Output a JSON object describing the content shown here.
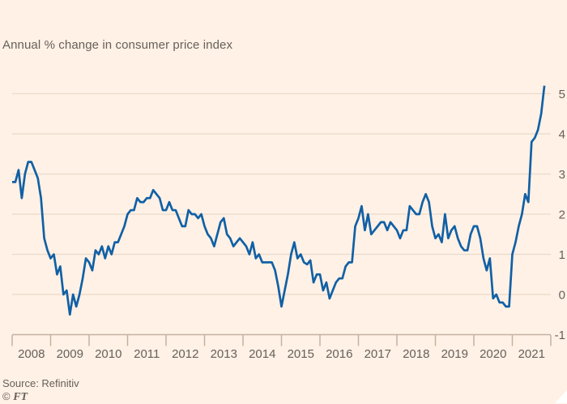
{
  "figure": {
    "subtitle": "Annual % change in consumer price index",
    "source": "Source: Refinitiv",
    "credit": {
      "symbol": "©",
      "name": "FT"
    }
  },
  "colors": {
    "background": "#FFF1E5",
    "line": "#1160A5",
    "gridline": "#E9DACA",
    "axis": "#C3B2A2",
    "text": "#66605C",
    "corner_fold": "#FFFFFF"
  },
  "chart_data": {
    "type": "line",
    "title": "Annual % change in consumer price index",
    "xlabel": "",
    "ylabel": "",
    "grid": "horizontal",
    "legend": "none",
    "x_range": {
      "start": "2008-01",
      "end": "2021-11",
      "frequency": "monthly"
    },
    "xlim_years": [
      2008,
      2022
    ],
    "ylim": [
      -1,
      5.45
    ],
    "y_ticks": [
      5,
      4,
      3,
      2,
      1,
      0,
      -1
    ],
    "x_tick_labels": [
      "2008",
      "2009",
      "2010",
      "2011",
      "2012",
      "2013",
      "2014",
      "2015",
      "2016",
      "2017",
      "2018",
      "2019",
      "2020",
      "2021"
    ],
    "series": [
      {
        "name": "Annual % change in consumer price index",
        "values": [
          2.8,
          2.8,
          3.1,
          2.4,
          3.0,
          3.3,
          3.3,
          3.1,
          2.9,
          2.4,
          1.4,
          1.1,
          0.9,
          1.0,
          0.5,
          0.7,
          0.0,
          0.1,
          -0.5,
          0.0,
          -0.3,
          0.0,
          0.4,
          0.9,
          0.8,
          0.6,
          1.1,
          1.0,
          1.2,
          0.9,
          1.2,
          1.0,
          1.3,
          1.3,
          1.5,
          1.7,
          2.0,
          2.1,
          2.1,
          2.4,
          2.3,
          2.3,
          2.4,
          2.4,
          2.6,
          2.5,
          2.4,
          2.1,
          2.1,
          2.3,
          2.1,
          2.1,
          1.9,
          1.7,
          1.7,
          2.1,
          2.0,
          2.0,
          1.9,
          2.0,
          1.7,
          1.5,
          1.4,
          1.2,
          1.5,
          1.8,
          1.9,
          1.5,
          1.4,
          1.2,
          1.3,
          1.4,
          1.3,
          1.2,
          1.0,
          1.3,
          0.9,
          1.0,
          0.8,
          0.8,
          0.8,
          0.8,
          0.6,
          0.2,
          -0.3,
          0.1,
          0.5,
          1.0,
          1.3,
          0.9,
          1.0,
          0.8,
          0.75,
          0.85,
          0.3,
          0.5,
          0.5,
          0.1,
          0.3,
          -0.1,
          0.1,
          0.3,
          0.4,
          0.4,
          0.7,
          0.8,
          0.8,
          1.7,
          1.9,
          2.2,
          1.6,
          2.0,
          1.5,
          1.6,
          1.7,
          1.8,
          1.8,
          1.6,
          1.8,
          1.7,
          1.6,
          1.4,
          1.6,
          1.6,
          2.2,
          2.1,
          2.0,
          2.0,
          2.3,
          2.5,
          2.3,
          1.7,
          1.4,
          1.5,
          1.3,
          2.0,
          1.4,
          1.6,
          1.7,
          1.4,
          1.2,
          1.1,
          1.1,
          1.5,
          1.7,
          1.7,
          1.4,
          0.9,
          0.6,
          0.9,
          -0.1,
          0.0,
          -0.2,
          -0.2,
          -0.3,
          -0.3,
          1.0,
          1.3,
          1.7,
          2.0,
          2.5,
          2.3,
          3.8,
          3.9,
          4.1,
          4.5,
          5.2
        ]
      }
    ]
  }
}
